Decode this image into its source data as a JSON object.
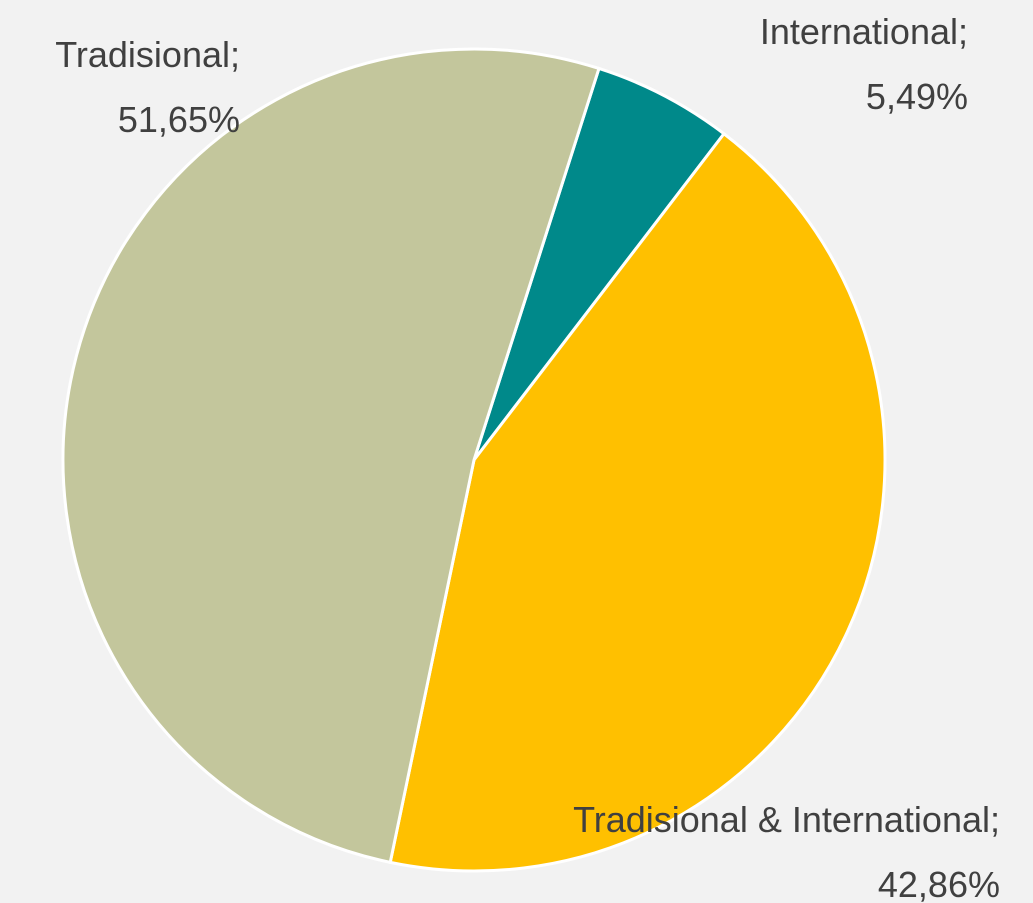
{
  "chart_data": {
    "type": "pie",
    "categories": [
      "International",
      "Tradisional & International",
      "Tradisional"
    ],
    "values": [
      5.49,
      42.86,
      51.65
    ],
    "value_labels": [
      "5,49%",
      "42,86%",
      "51,65%"
    ],
    "label_separator": ";",
    "colors": [
      "#00898a",
      "#ffc000",
      "#c3c69c"
    ]
  }
}
